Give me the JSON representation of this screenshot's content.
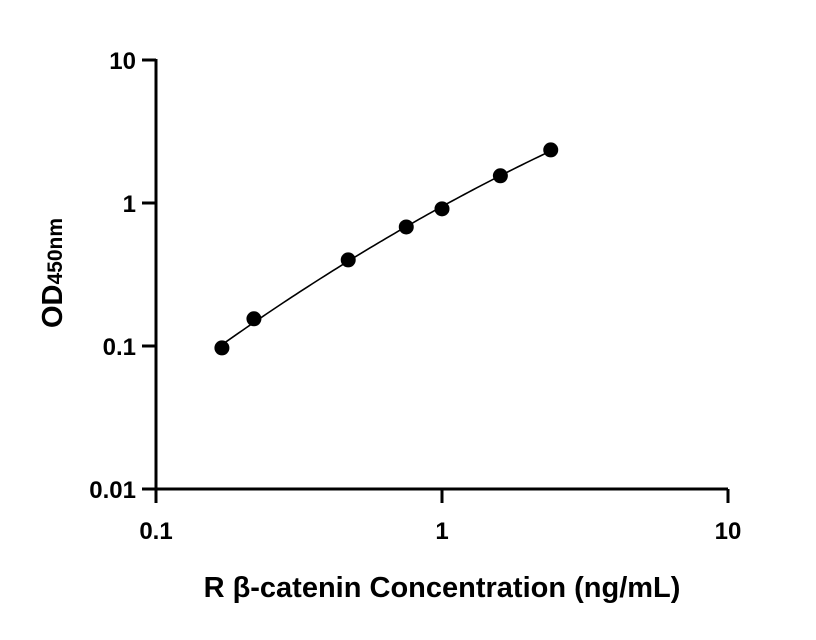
{
  "chart_data": {
    "type": "scatter",
    "xlabel": "R β-catenin Concentration (ng/mL)",
    "ylabel": {
      "main": "OD",
      "subscript": "450nm"
    },
    "x_scale": "log",
    "y_scale": "log",
    "xlim": [
      0.1,
      10
    ],
    "ylim": [
      0.01,
      10
    ],
    "x_ticks": [
      0.1,
      1,
      10
    ],
    "x_tick_labels": [
      "0.1",
      "1",
      "10"
    ],
    "y_ticks": [
      0.01,
      0.1,
      1,
      10
    ],
    "y_tick_labels": [
      "0.01",
      "0.1",
      "1",
      "10"
    ],
    "grid": false,
    "fit_curve": true,
    "series": [
      {
        "x": [
          0.17,
          0.22,
          0.47,
          0.75,
          1.0,
          1.6,
          2.4
        ],
        "y": [
          0.097,
          0.155,
          0.4,
          0.68,
          0.91,
          1.55,
          2.35
        ]
      }
    ]
  }
}
